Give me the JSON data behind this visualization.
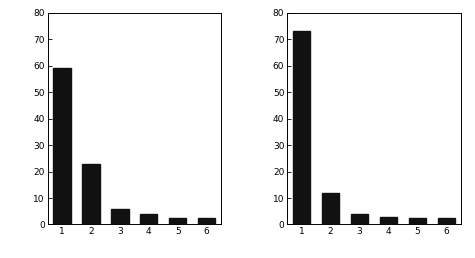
{
  "left_values": [
    59,
    23,
    6,
    4,
    2.5,
    2.5
  ],
  "right_values": [
    73,
    12,
    4,
    3,
    2.5,
    2.5
  ],
  "categories": [
    1,
    2,
    3,
    4,
    5,
    6
  ],
  "bar_color": "#111111",
  "ylim": [
    0,
    80
  ],
  "yticks": [
    0,
    10,
    20,
    30,
    40,
    50,
    60,
    70,
    80
  ],
  "xticks": [
    1,
    2,
    3,
    4,
    5,
    6
  ],
  "bar_width": 0.6,
  "bg_color": "#f8f8f8",
  "dot_color": "#cccccc"
}
